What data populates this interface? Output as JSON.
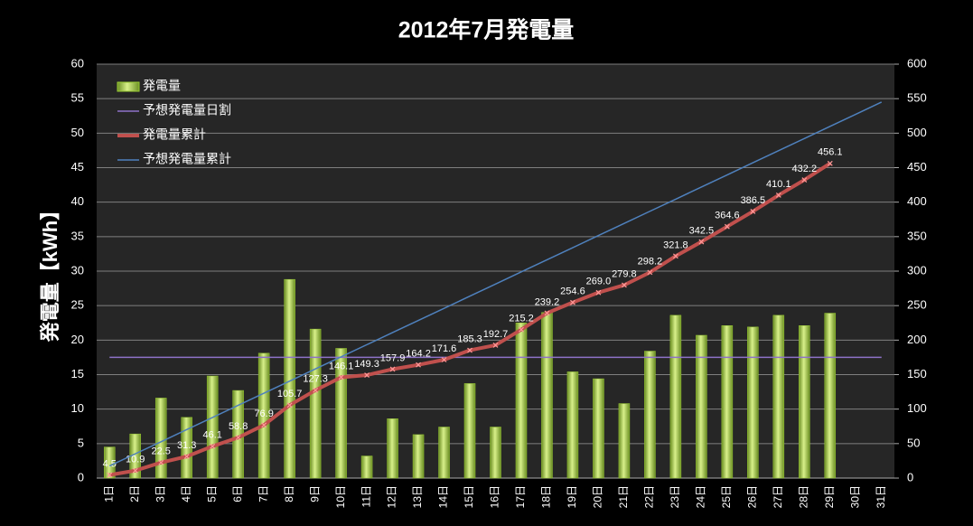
{
  "chart_data": {
    "type": "combo",
    "title": "2012年7月発電量",
    "y_label": "発電量【kWh】",
    "categories": [
      "1日",
      "2日",
      "3日",
      "4日",
      "5日",
      "6日",
      "7日",
      "8日",
      "9日",
      "10日",
      "11日",
      "12日",
      "13日",
      "14日",
      "15日",
      "16日",
      "17日",
      "18日",
      "19日",
      "20日",
      "21日",
      "22日",
      "23日",
      "24日",
      "25日",
      "26日",
      "27日",
      "28日",
      "29日",
      "30日",
      "31日"
    ],
    "ylim": [
      0,
      60
    ],
    "yticks": [
      0,
      5,
      10,
      15,
      20,
      25,
      30,
      35,
      40,
      45,
      50,
      55,
      60
    ],
    "y2lim": [
      0,
      600
    ],
    "y2ticks": [
      0,
      50,
      100,
      150,
      200,
      250,
      300,
      350,
      400,
      450,
      500,
      550,
      600
    ],
    "grid": true,
    "legend": "upper left",
    "series": [
      {
        "name": "発電量",
        "type": "bar",
        "color": "#9acd32",
        "values": [
          4.5,
          6.4,
          11.6,
          8.8,
          14.8,
          12.7,
          18.1,
          28.8,
          21.6,
          18.8,
          3.2,
          8.6,
          6.3,
          7.4,
          13.7,
          7.4,
          22.5,
          24.0,
          15.4,
          14.4,
          10.8,
          18.4,
          23.6,
          20.7,
          22.1,
          21.9,
          23.6,
          22.1,
          23.9,
          null,
          null
        ]
      },
      {
        "name": "予想発電量日割",
        "type": "line",
        "color": "#8e72c8",
        "values": [
          17.5,
          17.5,
          17.5,
          17.5,
          17.5,
          17.5,
          17.5,
          17.5,
          17.5,
          17.5,
          17.5,
          17.5,
          17.5,
          17.5,
          17.5,
          17.5,
          17.5,
          17.5,
          17.5,
          17.5,
          17.5,
          17.5,
          17.5,
          17.5,
          17.5,
          17.5,
          17.5,
          17.5,
          17.5,
          17.5,
          17.5
        ]
      },
      {
        "name": "発電量累計",
        "type": "line",
        "axis": "y2",
        "color": "#c0504d",
        "values": [
          4.5,
          10.9,
          22.5,
          31.3,
          46.1,
          58.8,
          76.9,
          105.7,
          127.3,
          146.1,
          149.3,
          157.9,
          164.2,
          171.6,
          185.3,
          192.7,
          215.2,
          239.2,
          254.6,
          269.0,
          279.8,
          298.2,
          321.8,
          342.5,
          364.6,
          386.5,
          410.1,
          432.2,
          456.1,
          null,
          null
        ],
        "value_labels": [
          "4.5",
          "10.9",
          "22.5",
          "31.3",
          "46.1",
          "58.8",
          "76.9",
          "105.7",
          "127.3",
          "146.1",
          "149.3",
          "157.9",
          "164.2",
          "171.6",
          "185.3",
          "192.7",
          "215.2",
          "239.2",
          "254.6",
          "269.0",
          "279.8",
          "298.2",
          "321.8",
          "342.5",
          "364.6",
          "386.5",
          "410.1",
          "432.2",
          "456.1",
          null,
          null
        ]
      },
      {
        "name": "予想発電量累計",
        "type": "line",
        "axis": "y2",
        "color": "#4f81bd",
        "values": [
          17.6,
          35.2,
          52.7,
          70.3,
          87.9,
          105.5,
          123.1,
          140.6,
          158.2,
          175.8,
          193.4,
          211.0,
          228.5,
          246.1,
          263.7,
          281.3,
          298.9,
          316.4,
          334.0,
          351.6,
          369.2,
          386.8,
          404.3,
          421.9,
          439.5,
          457.1,
          474.7,
          492.2,
          509.8,
          527.4,
          545.0
        ]
      }
    ]
  }
}
